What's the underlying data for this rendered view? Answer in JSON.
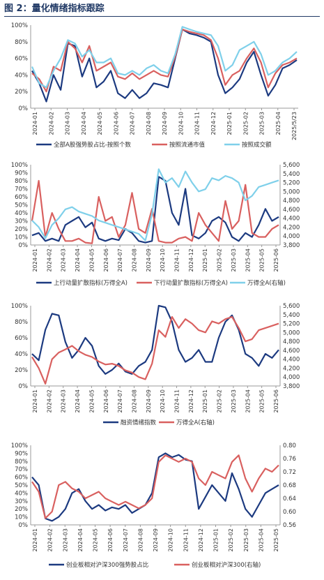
{
  "figure_title": "图 2：量化情绪指标跟踪",
  "colors": {
    "navy": "#1c3a80",
    "red": "#d9605f",
    "cyan": "#7fd0ea",
    "axis": "#999999",
    "text": "#333333"
  },
  "chart_data": [
    {
      "type": "line",
      "xlabels": [
        "2024-01",
        "2024-02",
        "2024-03",
        "2024-04",
        "2024-05",
        "2024-06",
        "2024-07",
        "2024-08",
        "2024-09",
        "2024-10",
        "2024-11",
        "2024-12",
        "2025-01",
        "2025-02",
        "2025-03",
        "2025-04",
        "2025/5/23"
      ],
      "ylim": [
        0,
        100
      ],
      "yticks": [
        "0%",
        "20%",
        "40%",
        "60%",
        "80%",
        "100%"
      ],
      "ytick_values": [
        0,
        20,
        40,
        60,
        80,
        100
      ],
      "series": [
        {
          "name": "全部A股强势股占比-按照个数",
          "color": "#1c3a80",
          "axis": "left",
          "values": [
            45,
            30,
            8,
            40,
            22,
            78,
            75,
            38,
            60,
            25,
            32,
            45,
            18,
            12,
            22,
            12,
            18,
            30,
            28,
            25,
            60,
            95,
            90,
            88,
            85,
            80,
            40,
            18,
            25,
            35,
            55,
            68,
            40,
            15,
            28,
            48,
            52,
            58
          ]
        },
        {
          "name": "按照流通市值",
          "color": "#d9605f",
          "axis": "left",
          "values": [
            42,
            35,
            20,
            50,
            45,
            80,
            72,
            55,
            75,
            45,
            50,
            55,
            38,
            35,
            42,
            35,
            40,
            45,
            40,
            38,
            62,
            95,
            92,
            90,
            88,
            82,
            60,
            28,
            40,
            45,
            60,
            72,
            55,
            25,
            42,
            52,
            55,
            60
          ]
        },
        {
          "name": "按照成交额",
          "color": "#7fd0ea",
          "axis": "left",
          "values": [
            50,
            30,
            25,
            45,
            60,
            82,
            78,
            62,
            70,
            55,
            55,
            60,
            42,
            40,
            45,
            40,
            48,
            52,
            45,
            42,
            65,
            98,
            95,
            92,
            90,
            88,
            75,
            45,
            52,
            70,
            75,
            80,
            65,
            40,
            45,
            55,
            60,
            68
          ]
        }
      ]
    },
    {
      "type": "line",
      "xlabels": [
        "2024-01",
        "2024-02",
        "2024-03",
        "2024-04",
        "2024-05",
        "2024-06",
        "2024-07",
        "2024-08",
        "2024-09",
        "2024-10",
        "2024-11",
        "2024-12",
        "2025-01",
        "2025-02",
        "2025-03",
        "2025-04",
        "2025-05",
        "2025-06"
      ],
      "ylim": [
        0,
        100
      ],
      "yticks": [
        "0%",
        "10%",
        "20%",
        "30%",
        "40%",
        "50%",
        "60%",
        "70%",
        "80%",
        "90%",
        "100%"
      ],
      "ytick_values": [
        0,
        10,
        20,
        30,
        40,
        50,
        60,
        70,
        80,
        90,
        100
      ],
      "y2lim": [
        3800,
        5600
      ],
      "y2ticks": [
        "3,800",
        "4,000",
        "4,200",
        "4,400",
        "4,600",
        "4,800",
        "5,000",
        "5,200",
        "5,400",
        "5,600"
      ],
      "y2tick_values": [
        3800,
        4000,
        4200,
        4400,
        4600,
        4800,
        5000,
        5200,
        5400,
        5600
      ],
      "series": [
        {
          "name": "上行动量扩散指标(万得全A)",
          "color": "#1c3a80",
          "axis": "left",
          "values": [
            12,
            15,
            5,
            8,
            5,
            25,
            30,
            35,
            22,
            28,
            8,
            5,
            8,
            6,
            20,
            15,
            5,
            3,
            5,
            85,
            80,
            40,
            25,
            70,
            12,
            8,
            15,
            30,
            35,
            28,
            10,
            5,
            15,
            10,
            25,
            45,
            30,
            35
          ]
        },
        {
          "name": "下行动量扩散指标(万得全A)",
          "color": "#d9605f",
          "axis": "left",
          "values": [
            30,
            80,
            10,
            40,
            20,
            5,
            5,
            8,
            3,
            2,
            60,
            30,
            35,
            10,
            25,
            65,
            20,
            15,
            45,
            5,
            3,
            3,
            8,
            10,
            5,
            40,
            25,
            15,
            5,
            55,
            20,
            30,
            75,
            15,
            10,
            10,
            20,
            25
          ]
        },
        {
          "name": "万得全A(右轴)",
          "color": "#7fd0ea",
          "axis": "right",
          "values": [
            4350,
            4200,
            3950,
            4250,
            4400,
            4600,
            4650,
            4550,
            4500,
            4450,
            4350,
            4300,
            4250,
            4200,
            4150,
            4100,
            4050,
            3900,
            4500,
            5500,
            5200,
            5300,
            5100,
            5450,
            5200,
            5000,
            5050,
            5300,
            5250,
            5350,
            5300,
            5200,
            4800,
            4900,
            5100,
            5150,
            5200,
            5250
          ]
        }
      ]
    },
    {
      "type": "line",
      "xlabels": [
        "2024-01",
        "2024-02",
        "2024-03",
        "2024-04",
        "2024-05",
        "2024-06",
        "2024-07",
        "2024-08",
        "2024-09",
        "2024-10",
        "2024-11",
        "2024-12",
        "2025-01",
        "2025-02",
        "2025-03",
        "2025-04",
        "2025-05",
        "2025-06"
      ],
      "ylim": [
        0,
        100
      ],
      "yticks": [
        "0%",
        "20%",
        "40%",
        "60%",
        "80%",
        "100%"
      ],
      "ytick_values": [
        0,
        20,
        40,
        60,
        80,
        100
      ],
      "y2lim": [
        3800,
        5600
      ],
      "y2ticks": [
        "3,800",
        "4,000",
        "4,200",
        "4,400",
        "4,600",
        "4,800",
        "5,000",
        "5,200",
        "5,400",
        "5,600"
      ],
      "y2tick_values": [
        3800,
        4000,
        4200,
        4400,
        4600,
        4800,
        5000,
        5200,
        5400,
        5600
      ],
      "series": [
        {
          "name": "融资情绪指数",
          "color": "#1c3a80",
          "axis": "left",
          "values": [
            40,
            32,
            70,
            90,
            88,
            55,
            35,
            45,
            60,
            50,
            25,
            15,
            20,
            28,
            18,
            15,
            25,
            30,
            45,
            100,
            98,
            80,
            45,
            30,
            35,
            45,
            30,
            30,
            60,
            80,
            88,
            70,
            40,
            35,
            25,
            40,
            35,
            45
          ]
        },
        {
          "name": "万得全A(右轴)",
          "color": "#d9605f",
          "axis": "right",
          "values": [
            4450,
            4200,
            3850,
            4400,
            4550,
            4620,
            4700,
            4580,
            4500,
            4450,
            4350,
            4280,
            4300,
            4250,
            4150,
            4100,
            4000,
            3950,
            4300,
            5050,
            4900,
            5350,
            5100,
            5300,
            5200,
            5050,
            5000,
            5250,
            5200,
            5300,
            5350,
            5100,
            4800,
            4850,
            5050,
            5100,
            5150,
            5200
          ]
        }
      ]
    },
    {
      "type": "line",
      "xlabels": [
        "2024-01",
        "2024-02",
        "2024-03",
        "2024-04",
        "2024-05",
        "2024-06",
        "2024-07",
        "2024-08",
        "2024-09",
        "2024-10",
        "2024-11",
        "2024-12",
        "2025-01",
        "2025-02",
        "2025-03",
        "2025-04",
        "2025-05"
      ],
      "ylim": [
        0,
        100
      ],
      "yticks": [
        "0%",
        "10%",
        "20%",
        "30%",
        "40%",
        "50%",
        "60%",
        "70%",
        "80%",
        "90%",
        "100%"
      ],
      "ytick_values": [
        0,
        10,
        20,
        30,
        40,
        50,
        60,
        70,
        80,
        90,
        100
      ],
      "y2lim": [
        0.56,
        0.8
      ],
      "y2ticks": [
        "0.56",
        "0.60",
        "0.64",
        "0.68",
        "0.72",
        "0.76",
        "0.80"
      ],
      "y2tick_values": [
        0.56,
        0.6,
        0.64,
        0.68,
        0.72,
        0.76,
        0.8
      ],
      "series": [
        {
          "name": "创业板相对沪深300强势股占比",
          "color": "#1c3a80",
          "axis": "left",
          "values": [
            60,
            50,
            8,
            5,
            10,
            20,
            40,
            45,
            30,
            20,
            25,
            18,
            22,
            20,
            25,
            15,
            20,
            25,
            40,
            85,
            90,
            85,
            88,
            82,
            80,
            20,
            35,
            50,
            40,
            30,
            65,
            45,
            20,
            10,
            25,
            40,
            45,
            50
          ]
        },
        {
          "name": "创业板相对沪深300(右轴)",
          "color": "#d9605f",
          "axis": "right",
          "values": [
            0.69,
            0.66,
            0.58,
            0.6,
            0.68,
            0.69,
            0.67,
            0.66,
            0.64,
            0.65,
            0.66,
            0.64,
            0.63,
            0.62,
            0.63,
            0.62,
            0.61,
            0.62,
            0.64,
            0.75,
            0.77,
            0.76,
            0.75,
            0.76,
            0.75,
            0.7,
            0.68,
            0.72,
            0.71,
            0.7,
            0.75,
            0.77,
            0.7,
            0.66,
            0.7,
            0.73,
            0.72,
            0.74
          ]
        }
      ]
    }
  ]
}
